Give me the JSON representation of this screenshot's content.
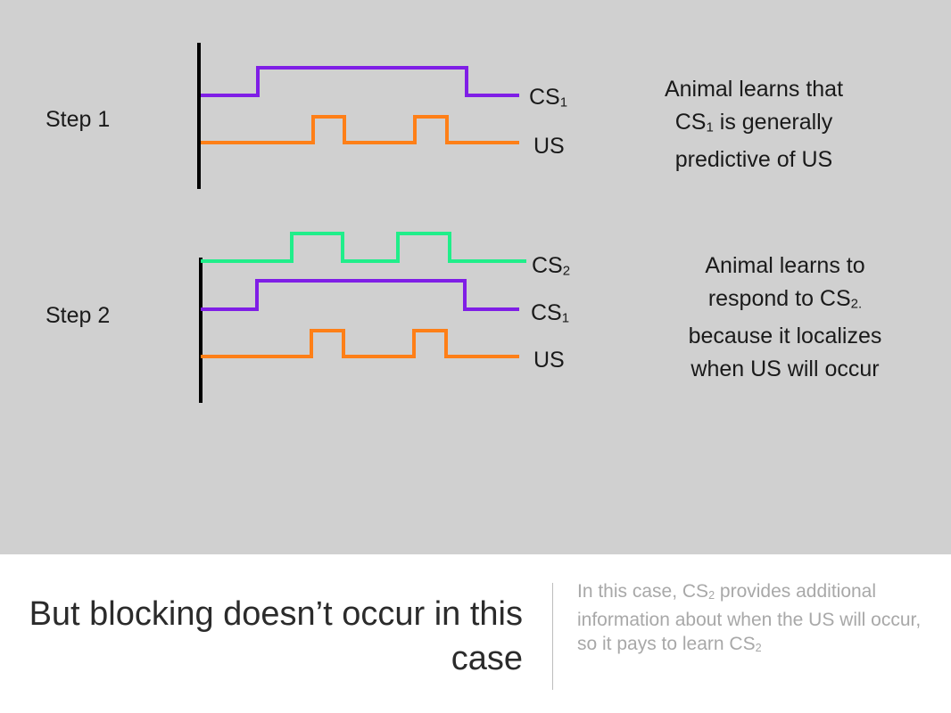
{
  "colors": {
    "panel": "#d0d0d0",
    "cs1": "#7f1ee6",
    "us": "#ff7f17",
    "cs2": "#20ee8a",
    "axis": "#000000"
  },
  "step1": {
    "label": "Step 1",
    "cs1": {
      "base": "CS",
      "sub": "1"
    },
    "us": "US",
    "note": {
      "l1": "Animal learns that",
      "l2_base": "CS",
      "l2_sub": "1",
      "l2_rest": " is generally",
      "l3": "predictive of US"
    }
  },
  "step2": {
    "label": "Step 2",
    "cs2": {
      "base": "CS",
      "sub": "2"
    },
    "cs1": {
      "base": "CS",
      "sub": "1"
    },
    "us": "US",
    "note": {
      "l1": "Animal learns to",
      "l2_base": "respond to CS",
      "l2_sub": "2.",
      "l3": "because it localizes",
      "l4": "when US will occur"
    }
  },
  "footer": {
    "title": "But blocking doesn’t occur in this case",
    "text_pre": "In this case, CS",
    "text_sub1": "2",
    "text_mid": " provides additional information about when the US will occur, so it pays to learn  CS",
    "text_sub2": "2"
  }
}
